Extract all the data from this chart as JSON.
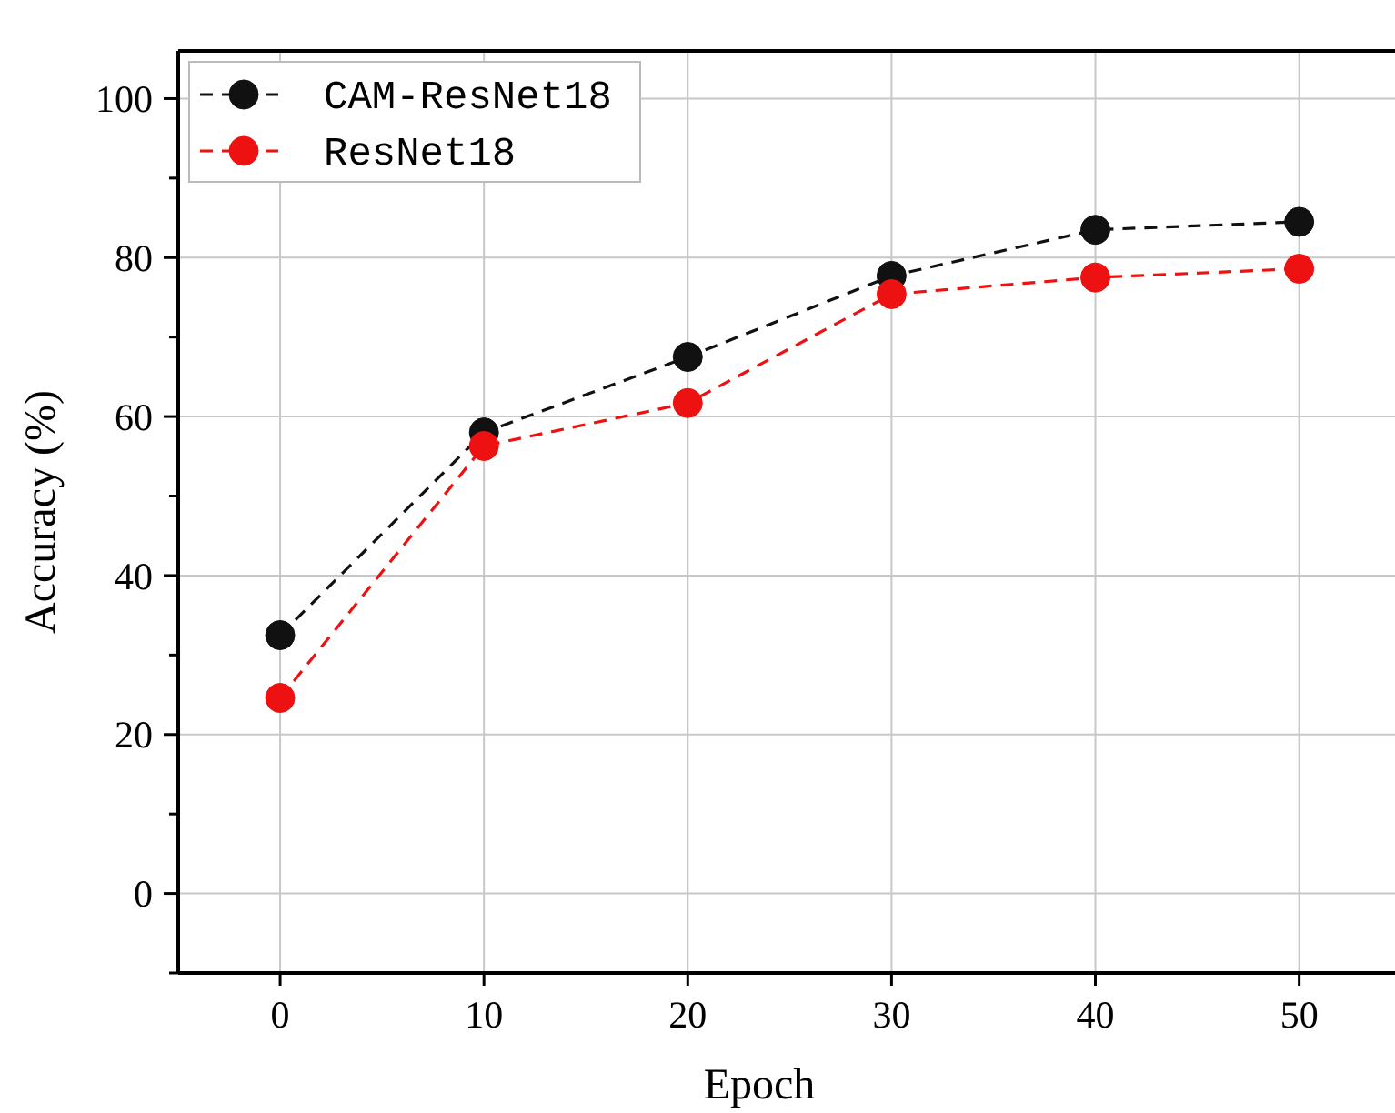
{
  "chart_data": {
    "type": "line",
    "xlabel": "Epoch",
    "ylabel": "Accuracy (%)",
    "x": [
      0,
      10,
      20,
      30,
      40,
      50
    ],
    "series": [
      {
        "name": "CAM-ResNet18",
        "color": "#111111",
        "values": [
          32.5,
          58.0,
          67.5,
          77.7,
          83.5,
          84.5
        ]
      },
      {
        "name": "ResNet18",
        "color": "#ee1111",
        "values": [
          24.6,
          56.3,
          61.7,
          75.4,
          77.5,
          78.6
        ]
      }
    ],
    "xlim": [
      -5,
      55
    ],
    "xticks": [
      0,
      10,
      20,
      30,
      40,
      50
    ],
    "ylim": [
      -10,
      106
    ],
    "yticks": [
      {
        "value": -10,
        "label": null
      },
      0,
      {
        "value": 10,
        "label": null
      },
      20,
      {
        "value": 30,
        "label": null
      },
      40,
      {
        "value": 50,
        "label": null
      },
      60,
      {
        "value": 70,
        "label": null
      },
      80,
      {
        "value": 90,
        "label": null
      },
      100
    ],
    "grid": true,
    "legend": "top left",
    "marker": "circle",
    "line_style": "dashed"
  }
}
